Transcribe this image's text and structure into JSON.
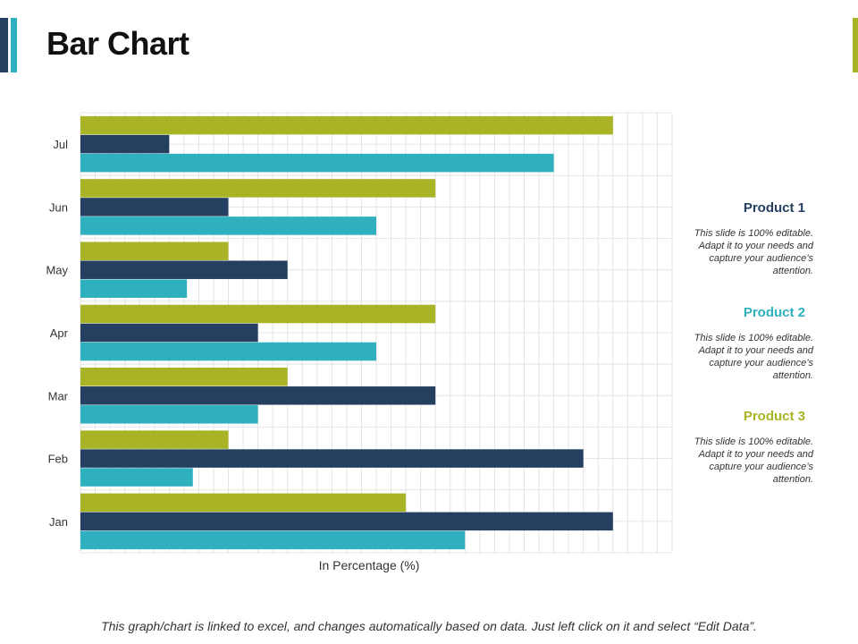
{
  "title": "Bar Chart",
  "colors": {
    "product1": "#243f60",
    "product2": "#2fb0bf",
    "product3": "#a8b325",
    "grid": "#e4e4e4"
  },
  "chart_data": {
    "type": "bar",
    "orientation": "horizontal",
    "categories": [
      "Jan",
      "Feb",
      "Mar",
      "Apr",
      "May",
      "Jun",
      "Jul"
    ],
    "series": [
      {
        "name": "Product 3",
        "values": [
          55,
          25,
          35,
          60,
          25,
          60,
          90
        ]
      },
      {
        "name": "Product 1",
        "values": [
          90,
          85,
          60,
          30,
          35,
          25,
          15
        ]
      },
      {
        "name": "Product 2",
        "values": [
          65,
          19,
          30,
          50,
          18,
          50,
          80
        ]
      }
    ],
    "title": "",
    "xlabel": "In Percentage (%)",
    "ylabel": "",
    "xlim": [
      0,
      100
    ],
    "grid": true,
    "legend_position": "right"
  },
  "legend": [
    {
      "name": "Product 1",
      "description": "This slide is 100% editable. Adapt it to your needs and capture your audience’s attention."
    },
    {
      "name": "Product 2",
      "description": "This slide is 100% editable. Adapt it to your needs and capture your audience’s attention."
    },
    {
      "name": "Product 3",
      "description": "This slide is 100% editable. Adapt it to your needs and capture your audience’s attention."
    }
  ],
  "footer": "This graph/chart is linked to excel, and changes automatically based on data. Just left click on it and select “Edit Data”."
}
